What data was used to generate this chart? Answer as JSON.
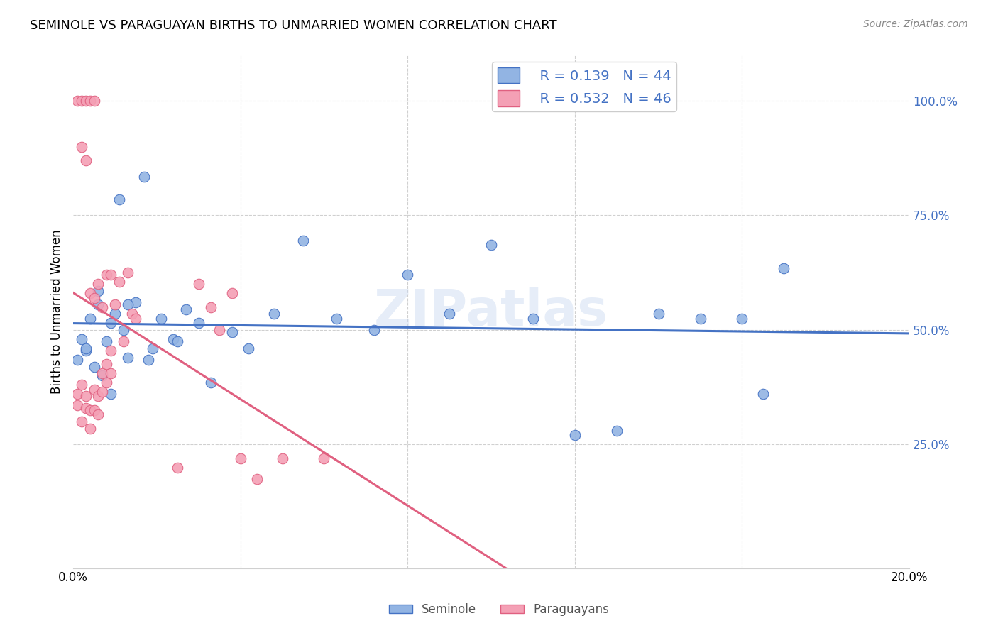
{
  "title": "SEMINOLE VS PARAGUAYAN BIRTHS TO UNMARRIED WOMEN CORRELATION CHART",
  "source": "Source: ZipAtlas.com",
  "ylabel": "Births to Unmarried Women",
  "xlim": [
    0.0,
    0.2
  ],
  "ylim": [
    -0.02,
    1.1
  ],
  "yticks": [
    0.25,
    0.5,
    0.75,
    1.0
  ],
  "ytick_labels": [
    "25.0%",
    "50.0%",
    "75.0%",
    "100.0%"
  ],
  "xticks": [
    0.0,
    0.04,
    0.08,
    0.12,
    0.16,
    0.2
  ],
  "xtick_labels": [
    "0.0%",
    "",
    "",
    "",
    "",
    "20.0%"
  ],
  "legend_blue_r": "R = 0.139",
  "legend_blue_n": "N = 44",
  "legend_pink_r": "R = 0.532",
  "legend_pink_n": "N = 46",
  "seminole_color": "#92b4e3",
  "paraguayan_color": "#f4a0b5",
  "trendline_blue": "#4472c4",
  "trendline_pink": "#e06080",
  "watermark": "ZIPatlas",
  "seminole_x": [
    0.001,
    0.002,
    0.003,
    0.004,
    0.005,
    0.006,
    0.007,
    0.008,
    0.009,
    0.01,
    0.011,
    0.012,
    0.013,
    0.015,
    0.017,
    0.019,
    0.021,
    0.024,
    0.027,
    0.03,
    0.033,
    0.038,
    0.042,
    0.048,
    0.055,
    0.063,
    0.072,
    0.08,
    0.09,
    0.1,
    0.11,
    0.12,
    0.13,
    0.14,
    0.15,
    0.16,
    0.165,
    0.17,
    0.003,
    0.006,
    0.009,
    0.013,
    0.018,
    0.025
  ],
  "seminole_y": [
    0.435,
    0.48,
    0.455,
    0.525,
    0.42,
    0.555,
    0.4,
    0.475,
    0.36,
    0.535,
    0.785,
    0.5,
    0.44,
    0.56,
    0.835,
    0.46,
    0.525,
    0.48,
    0.545,
    0.515,
    0.385,
    0.495,
    0.46,
    0.535,
    0.695,
    0.525,
    0.5,
    0.62,
    0.535,
    0.685,
    0.525,
    0.27,
    0.28,
    0.535,
    0.525,
    0.525,
    0.36,
    0.635,
    0.46,
    0.585,
    0.515,
    0.555,
    0.435,
    0.475
  ],
  "paraguayan_x": [
    0.001,
    0.001,
    0.002,
    0.002,
    0.003,
    0.003,
    0.004,
    0.004,
    0.005,
    0.005,
    0.006,
    0.006,
    0.007,
    0.007,
    0.008,
    0.008,
    0.009,
    0.009,
    0.01,
    0.011,
    0.012,
    0.013,
    0.014,
    0.015,
    0.001,
    0.002,
    0.003,
    0.004,
    0.005,
    0.002,
    0.003,
    0.004,
    0.005,
    0.006,
    0.007,
    0.008,
    0.009,
    0.025,
    0.03,
    0.033,
    0.035,
    0.038,
    0.04,
    0.044,
    0.05,
    0.06
  ],
  "paraguayan_y": [
    0.335,
    0.36,
    0.3,
    0.38,
    0.355,
    0.33,
    0.325,
    0.285,
    0.37,
    0.325,
    0.315,
    0.355,
    0.405,
    0.365,
    0.385,
    0.425,
    0.455,
    0.405,
    0.555,
    0.605,
    0.475,
    0.625,
    0.535,
    0.525,
    1.0,
    1.0,
    1.0,
    1.0,
    1.0,
    0.9,
    0.87,
    0.58,
    0.57,
    0.6,
    0.55,
    0.62,
    0.62,
    0.2,
    0.6,
    0.55,
    0.5,
    0.58,
    0.22,
    0.175,
    0.22,
    0.22
  ]
}
